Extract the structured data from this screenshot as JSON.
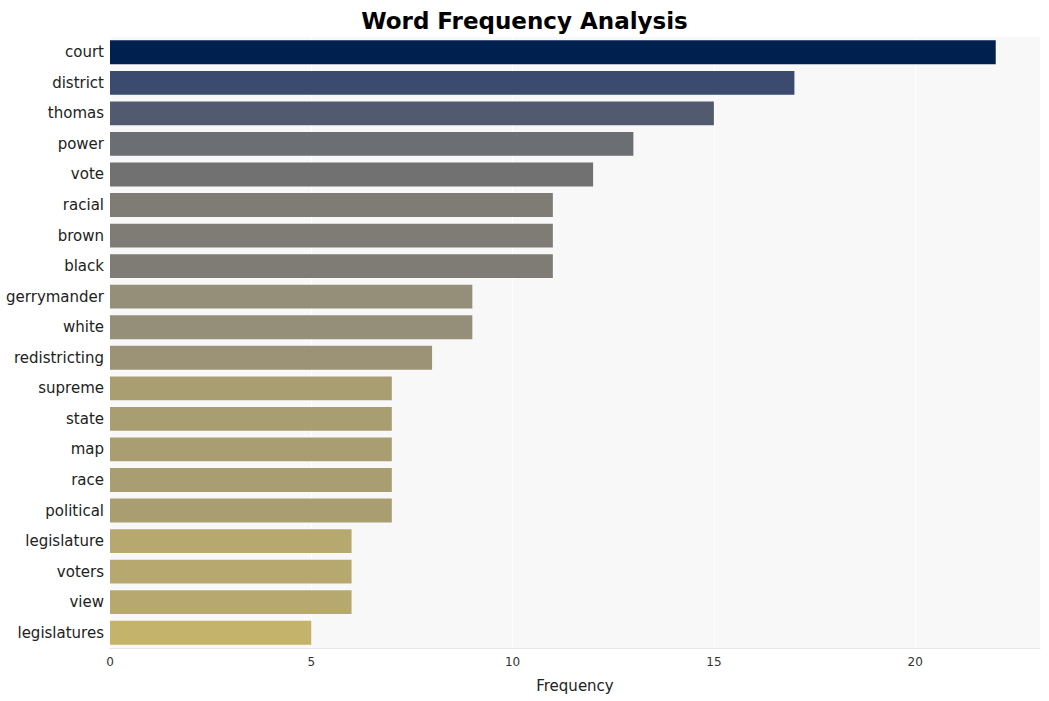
{
  "chart_data": {
    "type": "bar",
    "orientation": "horizontal",
    "title": "Word Frequency Analysis",
    "x_label": "Frequency",
    "categories": [
      "court",
      "district",
      "thomas",
      "power",
      "vote",
      "racial",
      "brown",
      "black",
      "gerrymander",
      "white",
      "redistricting",
      "supreme",
      "state",
      "map",
      "race",
      "political",
      "legislature",
      "voters",
      "view",
      "legislatures"
    ],
    "values": [
      22,
      17,
      15,
      13,
      12,
      11,
      11,
      11,
      9,
      9,
      8,
      7,
      7,
      7,
      7,
      7,
      6,
      6,
      6,
      5
    ],
    "colors": [
      "#00204f",
      "#3b4a6f",
      "#525a70",
      "#6b6e73",
      "#717172",
      "#7f7c75",
      "#7f7c75",
      "#7f7c75",
      "#958e78",
      "#958e78",
      "#9c9377",
      "#a99e72",
      "#a99e72",
      "#a99e72",
      "#a99e72",
      "#a99e72",
      "#b6a86e",
      "#b6a86e",
      "#b6a86e",
      "#c4b36a"
    ],
    "xlim": [
      0,
      23.1
    ],
    "xticks": [
      0,
      5,
      10,
      15,
      20
    ],
    "grid": true
  }
}
